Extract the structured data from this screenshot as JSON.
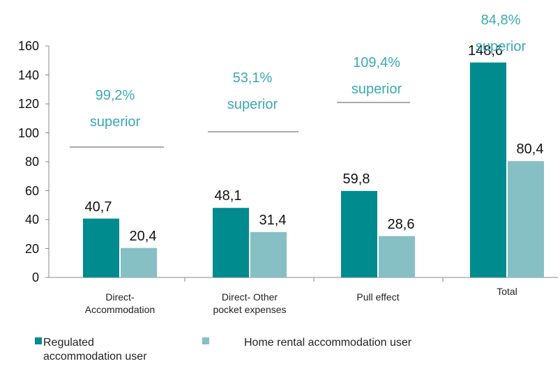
{
  "chart_data": {
    "type": "bar",
    "categories": [
      "Direct-\nAccommodation",
      "Direct- Other\npocket expenses",
      "Pull effect",
      "Total"
    ],
    "series": [
      {
        "name": "Regulated\naccommodation user",
        "color": "#008b8f",
        "values": [
          40.7,
          48.1,
          59.8,
          148.6
        ],
        "value_labels": [
          "40,7",
          "48,1",
          "59,8",
          "148,6"
        ]
      },
      {
        "name": "Home rental accommodation user",
        "color": "#86bfc4",
        "values": [
          20.4,
          31.4,
          28.6,
          80.4
        ],
        "value_labels": [
          "20,4",
          "31,4",
          "28,6",
          "80,4"
        ]
      }
    ],
    "annotations": [
      "99,2%\nsuperior",
      "53,1%\nsuperior",
      "109,4%\nsuperior",
      "84,8% superior"
    ],
    "ylim": [
      0,
      160
    ],
    "yticks": [
      0,
      20,
      40,
      60,
      80,
      100,
      120,
      140,
      160
    ],
    "grid": false
  }
}
